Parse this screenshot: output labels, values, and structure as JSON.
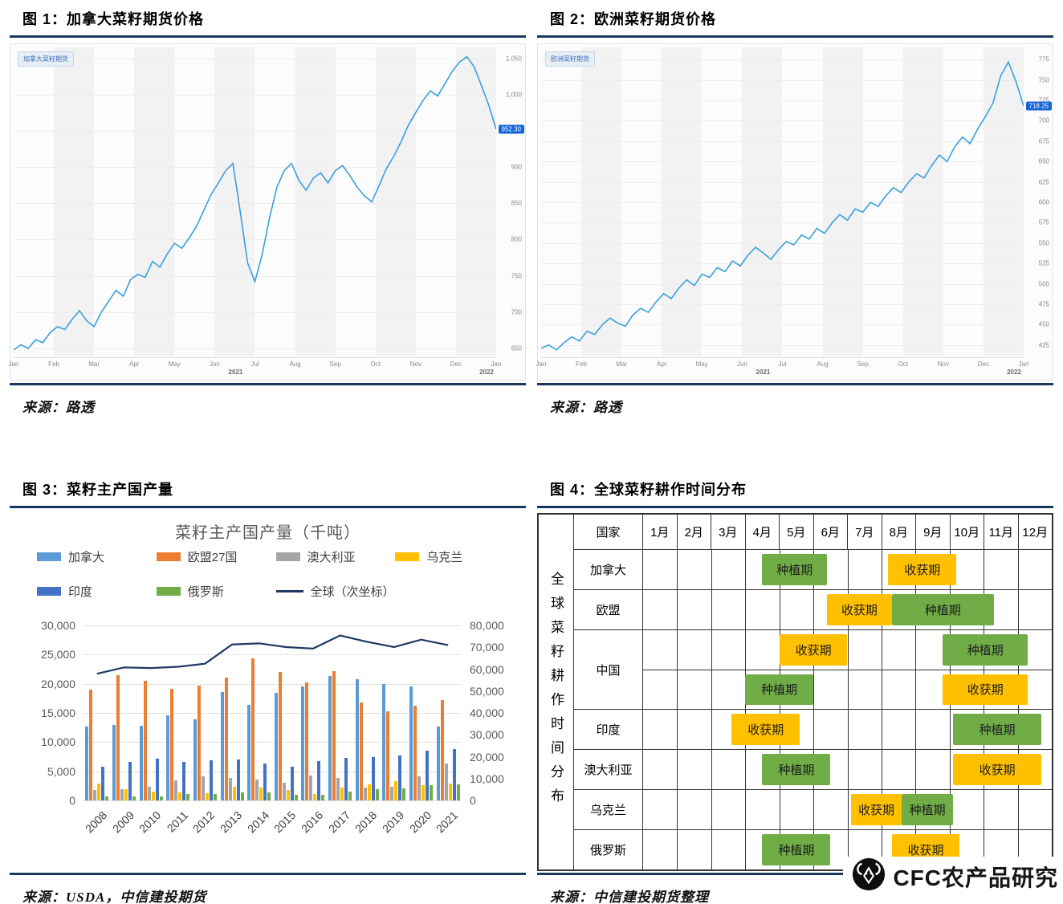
{
  "page": {
    "divider_color": "#17375E"
  },
  "panels": {
    "fig1": {
      "title": "图 1：加拿大菜籽期货价格",
      "source": "来源：路透",
      "symbol_tag": "加拿大菜籽期货",
      "last_price": "952.30"
    },
    "fig2": {
      "title": "图 2：欧洲菜籽期货价格",
      "source": "来源：路透",
      "symbol_tag": "欧洲菜籽期货",
      "last_price": "718.25"
    },
    "fig3": {
      "title": "图 3：菜籽主产国产量",
      "source": "来源：USDA，中信建投期货"
    },
    "fig4": {
      "title": "图 4：全球菜籽耕作时间分布",
      "source": "来源：中信建投期货整理"
    }
  },
  "logo": {
    "text": "CFC农产品研究",
    "icon": "ram-head-in-circle"
  },
  "chart_data": [
    {
      "id": "fig1",
      "type": "line",
      "title": "加拿大菜籽期货价格",
      "x_labels": [
        "Jan",
        "Feb",
        "Mar",
        "Apr",
        "May",
        "Jun",
        "Jul",
        "Aug",
        "Sep",
        "Oct",
        "Nov",
        "Dec",
        "Jan"
      ],
      "year_labels": [
        "2021",
        "2022"
      ],
      "year_positions": [
        46,
        98
      ],
      "ylim": [
        640,
        1065
      ],
      "y_ticks": [
        650,
        700,
        750,
        800,
        850,
        900,
        950,
        1000,
        1050
      ],
      "line_color": "#39a0dc",
      "series": [
        {
          "name": "加拿大菜籽期货",
          "values": [
            648,
            655,
            650,
            662,
            658,
            672,
            680,
            676,
            690,
            702,
            688,
            680,
            700,
            715,
            730,
            722,
            745,
            752,
            748,
            770,
            762,
            780,
            795,
            788,
            802,
            818,
            840,
            862,
            878,
            895,
            905,
            838,
            768,
            742,
            780,
            830,
            872,
            895,
            905,
            882,
            868,
            885,
            892,
            878,
            895,
            902,
            888,
            872,
            860,
            852,
            875,
            898,
            915,
            935,
            958,
            975,
            992,
            1005,
            998,
            1015,
            1032,
            1045,
            1052,
            1038,
            1012,
            985,
            952
          ]
        }
      ],
      "last_value": 952
    },
    {
      "id": "fig2",
      "type": "line",
      "title": "欧洲菜籽期货价格",
      "x_labels": [
        "Jan",
        "Feb",
        "Mar",
        "Apr",
        "May",
        "Jun",
        "Jul",
        "Aug",
        "Sep",
        "Oct",
        "Nov",
        "Dec",
        "Jan"
      ],
      "year_labels": [
        "2021",
        "2022"
      ],
      "year_positions": [
        46,
        98
      ],
      "ylim": [
        412,
        790
      ],
      "y_ticks": [
        425,
        450,
        475,
        500,
        525,
        550,
        575,
        600,
        625,
        650,
        675,
        700,
        725,
        750,
        775
      ],
      "line_color": "#39a0dc",
      "series": [
        {
          "name": "欧洲菜籽期货",
          "values": [
            421,
            425,
            419,
            428,
            435,
            430,
            442,
            438,
            450,
            458,
            452,
            448,
            462,
            470,
            465,
            478,
            488,
            482,
            495,
            505,
            498,
            512,
            508,
            520,
            515,
            528,
            522,
            535,
            545,
            538,
            530,
            542,
            552,
            548,
            560,
            555,
            568,
            562,
            575,
            585,
            578,
            592,
            588,
            600,
            595,
            608,
            618,
            612,
            625,
            635,
            630,
            645,
            658,
            650,
            668,
            680,
            672,
            690,
            705,
            722,
            755,
            772,
            748,
            718
          ]
        }
      ],
      "last_value": 718
    },
    {
      "id": "fig3",
      "type": "bar",
      "title": "菜籽主产国产量（千吨）",
      "categories": [
        "2008",
        "2009",
        "2010",
        "2011",
        "2012",
        "2013",
        "2014",
        "2015",
        "2016",
        "2017",
        "2018",
        "2019",
        "2020",
        "2021"
      ],
      "left_axis": {
        "ticks": [
          0,
          5000,
          10000,
          15000,
          20000,
          25000,
          30000
        ],
        "max": 30000
      },
      "right_axis": {
        "ticks": [
          0,
          10000,
          20000,
          30000,
          40000,
          50000,
          60000,
          70000,
          80000
        ],
        "max": 80000
      },
      "series": [
        {
          "name": "加拿大",
          "color": "#5B9BD5",
          "kind": "bar",
          "values": [
            12643,
            12898,
            12789,
            14608,
            13869,
            18551,
            16410,
            18377,
            19600,
            21328,
            20724,
            19891,
            19485,
            12595
          ]
        },
        {
          "name": "欧盟27国",
          "color": "#ED7D31",
          "kind": "bar",
          "values": [
            19053,
            21417,
            20467,
            19170,
            19737,
            21108,
            24312,
            21997,
            20288,
            22206,
            16841,
            15250,
            16213,
            17250
          ]
        },
        {
          "name": "澳大利亚",
          "color": "#A5A5A5",
          "kind": "bar",
          "values": [
            1844,
            1907,
            2359,
            3427,
            4142,
            3832,
            3540,
            2998,
            4313,
            3893,
            2180,
            2330,
            4100,
            6350
          ]
        },
        {
          "name": "乌克兰",
          "color": "#FFC000",
          "kind": "bar",
          "values": [
            2873,
            1870,
            1470,
            1440,
            1200,
            2352,
            2198,
            1738,
            1154,
            2195,
            2750,
            3280,
            2560,
            2930
          ]
        },
        {
          "name": "印度",
          "color": "#4472C4",
          "kind": "bar",
          "values": [
            5834,
            6608,
            7127,
            6604,
            6822,
            7020,
            6282,
            5800,
            6797,
            7307,
            7500,
            7700,
            8500,
            8800
          ]
        },
        {
          "name": "俄罗斯",
          "color": "#70AD47",
          "kind": "bar",
          "values": [
            752,
            667,
            670,
            1056,
            1035,
            1393,
            1338,
            1012,
            998,
            1510,
            1988,
            2060,
            2573,
            2800
          ]
        },
        {
          "name": "全球（次坐标）",
          "color": "#1F3864",
          "kind": "line",
          "values": [
            57900,
            60800,
            60500,
            61100,
            62500,
            71300,
            71800,
            70100,
            69400,
            75400,
            72500,
            70100,
            73500,
            71000
          ]
        }
      ]
    },
    {
      "id": "fig4",
      "type": "table",
      "title": "全球菜籽耕作时间分布",
      "vertical_label": "全球菜籽耕作时间分布",
      "corner_label": "国家",
      "months": [
        "1月",
        "2月",
        "3月",
        "4月",
        "5月",
        "6月",
        "7月",
        "8月",
        "9月",
        "10月",
        "11月",
        "12月"
      ],
      "planting_label": "种植期",
      "harvest_label": "收获期",
      "colors": {
        "planting": "#70AD47",
        "harvest": "#FFC000"
      },
      "rows": [
        {
          "country": "加拿大",
          "lines": [
            [
              {
                "type": "planting",
                "start": 3.5,
                "end": 5.4
              },
              {
                "type": "harvest",
                "start": 7.2,
                "end": 9.2
              }
            ]
          ]
        },
        {
          "country": "欧盟",
          "lines": [
            [
              {
                "type": "harvest",
                "start": 5.4,
                "end": 7.3
              },
              {
                "type": "planting",
                "start": 7.3,
                "end": 10.3
              }
            ]
          ]
        },
        {
          "country": "中国",
          "lines": [
            [
              {
                "type": "harvest",
                "start": 4.0,
                "end": 6.0
              },
              {
                "type": "planting",
                "start": 8.8,
                "end": 11.3
              }
            ],
            [
              {
                "type": "planting",
                "start": 3.0,
                "end": 5.0
              },
              {
                "type": "harvest",
                "start": 8.8,
                "end": 11.3
              }
            ]
          ]
        },
        {
          "country": "印度",
          "lines": [
            [
              {
                "type": "harvest",
                "start": 2.6,
                "end": 4.6
              },
              {
                "type": "planting",
                "start": 9.1,
                "end": 11.7
              }
            ]
          ]
        },
        {
          "country": "澳大利亚",
          "lines": [
            [
              {
                "type": "planting",
                "start": 3.5,
                "end": 5.5
              },
              {
                "type": "harvest",
                "start": 9.1,
                "end": 11.7
              }
            ]
          ]
        },
        {
          "country": "乌克兰",
          "lines": [
            [
              {
                "type": "harvest",
                "start": 6.1,
                "end": 7.6
              },
              {
                "type": "planting",
                "start": 7.6,
                "end": 9.1
              }
            ]
          ]
        },
        {
          "country": "俄罗斯",
          "lines": [
            [
              {
                "type": "planting",
                "start": 3.5,
                "end": 5.5
              },
              {
                "type": "harvest",
                "start": 7.3,
                "end": 9.3
              }
            ]
          ]
        }
      ]
    }
  ]
}
